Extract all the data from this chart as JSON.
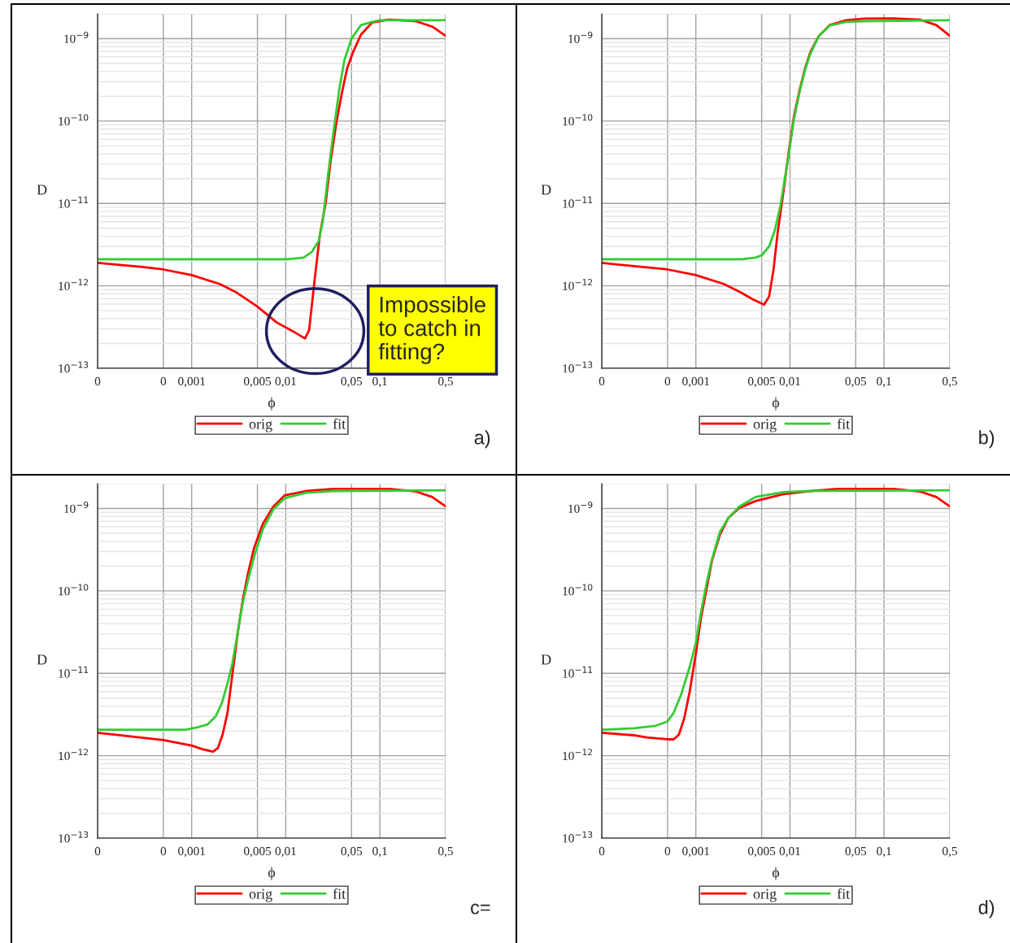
{
  "chart_data": [
    {
      "type": "line",
      "xlabel": "ϕ",
      "ylabel": "D",
      "log": "xy",
      "grid": true,
      "legend": "bottom",
      "xlim": [
        0.0001,
        0.5
      ],
      "xticks": [
        {
          "value": 0.0001,
          "label": "0"
        },
        {
          "value": 0.0005,
          "label": "0"
        },
        {
          "value": 0.001,
          "label": "0,001"
        },
        {
          "value": 0.005,
          "label": "0,005"
        },
        {
          "value": 0.01,
          "label": "0,01"
        },
        {
          "value": 0.05,
          "label": "0,05"
        },
        {
          "value": 0.1,
          "label": "0,1"
        },
        {
          "value": 0.5,
          "label": "0,5"
        }
      ],
      "ylim": [
        1e-13,
        2e-09
      ],
      "yticks": [
        {
          "value": 1e-13,
          "label": "10$^{−13}$"
        },
        {
          "value": 1e-12,
          "label": "10$^{−12}$"
        },
        {
          "value": 1e-11,
          "label": "10$^{−11}$"
        },
        {
          "value": 1e-10,
          "label": "10$^{−10}$"
        },
        {
          "value": 1e-09,
          "label": "10$^{−9}$"
        }
      ],
      "annotations": [
        "Impossible\nto catch in\nfitting?",
        "a)"
      ],
      "series": [
        {
          "name": "orig",
          "color": "#ff0000",
          "x": [
            0.0001,
            0.0003,
            0.0005,
            0.001,
            0.002,
            0.003,
            0.005,
            0.008,
            0.012,
            0.016,
            0.0177,
            0.0203,
            0.023,
            0.0265,
            0.03,
            0.0345,
            0.0395,
            0.045,
            0.052,
            0.063,
            0.083,
            0.124,
            0.24,
            0.36,
            0.5
          ],
          "values": [
            1.9e-12,
            1.7e-12,
            1.58e-12,
            1.35e-12,
            1.05e-12,
            8.3e-13,
            5.6e-13,
            3.6e-13,
            2.8e-13,
            2.3e-13,
            2.9e-13,
            1.2e-12,
            4.1e-12,
            1e-11,
            3.3e-11,
            9.6e-11,
            2.2e-10,
            4.4e-10,
            6.9e-10,
            1.12e-09,
            1.57e-09,
            1.7e-09,
            1.63e-09,
            1.4e-09,
            1.08e-09
          ]
        },
        {
          "name": "fit",
          "color": "#33cc33",
          "x": [
            0.0001,
            0.001,
            0.0105,
            0.0155,
            0.019,
            0.0224,
            0.0247,
            0.028,
            0.032,
            0.037,
            0.042,
            0.05,
            0.063,
            0.083,
            0.1,
            0.5
          ],
          "values": [
            2.1e-12,
            2.1e-12,
            2.1e-12,
            2.2e-12,
            2.6e-12,
            3.5e-12,
            6e-12,
            2.1e-11,
            7.1e-11,
            2.4e-10,
            5.5e-10,
            1e-09,
            1.46e-09,
            1.6e-09,
            1.67e-09,
            1.67e-09
          ]
        }
      ]
    },
    {
      "type": "line",
      "xlabel": "ϕ",
      "ylabel": "D",
      "log": "xy",
      "grid": true,
      "legend": "bottom",
      "xlim": [
        0.0001,
        0.5
      ],
      "xticks": [
        {
          "value": 0.0001,
          "label": "0"
        },
        {
          "value": 0.0005,
          "label": "0"
        },
        {
          "value": 0.001,
          "label": "0,001"
        },
        {
          "value": 0.005,
          "label": "0,005"
        },
        {
          "value": 0.01,
          "label": "0,01"
        },
        {
          "value": 0.05,
          "label": "0,05"
        },
        {
          "value": 0.1,
          "label": "0,1"
        },
        {
          "value": 0.5,
          "label": "0,5"
        }
      ],
      "ylim": [
        1e-13,
        2e-09
      ],
      "yticks": [
        {
          "value": 1e-13,
          "label": "10$^{−13}$"
        },
        {
          "value": 1e-12,
          "label": "10$^{−12}$"
        },
        {
          "value": 1e-11,
          "label": "10$^{−11}$"
        },
        {
          "value": 1e-10,
          "label": "10$^{−10}$"
        },
        {
          "value": 1e-09,
          "label": "10$^{−9}$"
        }
      ],
      "annotations": [
        "b)"
      ],
      "series": [
        {
          "name": "orig",
          "color": "#ff0000",
          "x": [
            0.0001,
            0.0005,
            0.001,
            0.002,
            0.003,
            0.004,
            0.0053,
            0.006,
            0.0067,
            0.0074,
            0.0085,
            0.0097,
            0.011,
            0.0127,
            0.0145,
            0.0165,
            0.0203,
            0.0265,
            0.0395,
            0.063,
            0.124,
            0.24,
            0.36,
            0.5
          ],
          "values": [
            1.9e-12,
            1.58e-12,
            1.35e-12,
            1.05e-12,
            8.3e-13,
            6.9e-13,
            5.9e-13,
            7.4e-13,
            1.6e-12,
            4.4e-12,
            1.35e-11,
            4.2e-11,
            1.12e-10,
            2.4e-10,
            4.4e-10,
            6.9e-10,
            1.08e-09,
            1.46e-09,
            1.67e-09,
            1.75e-09,
            1.76e-09,
            1.7e-09,
            1.46e-09,
            1.08e-09
          ]
        },
        {
          "name": "fit",
          "color": "#33cc33",
          "x": [
            0.0001,
            0.001,
            0.0031,
            0.0043,
            0.005,
            0.006,
            0.0069,
            0.0079,
            0.0097,
            0.011,
            0.0127,
            0.0145,
            0.0165,
            0.0203,
            0.0265,
            0.0395,
            0.063,
            0.5
          ],
          "values": [
            2.1e-12,
            2.1e-12,
            2.1e-12,
            2.2e-12,
            2.35e-12,
            3e-12,
            4.7e-12,
            9.3e-12,
            3.9e-11,
            1.04e-10,
            2.3e-10,
            4.2e-10,
            6.6e-10,
            1.08e-09,
            1.44e-09,
            1.6e-09,
            1.63e-09,
            1.67e-09
          ]
        }
      ]
    },
    {
      "type": "line",
      "xlabel": "ϕ",
      "ylabel": "D",
      "log": "xy",
      "grid": true,
      "legend": "bottom",
      "xlim": [
        0.0001,
        0.5
      ],
      "xticks": [
        {
          "value": 0.0001,
          "label": "0"
        },
        {
          "value": 0.0005,
          "label": "0"
        },
        {
          "value": 0.001,
          "label": "0,001"
        },
        {
          "value": 0.005,
          "label": "0,005"
        },
        {
          "value": 0.01,
          "label": "0,01"
        },
        {
          "value": 0.05,
          "label": "0,05"
        },
        {
          "value": 0.1,
          "label": "0,1"
        },
        {
          "value": 0.5,
          "label": "0,5"
        }
      ],
      "ylim": [
        1e-13,
        2e-09
      ],
      "yticks": [
        {
          "value": 1e-13,
          "label": "10$^{−13}$"
        },
        {
          "value": 1e-12,
          "label": "10$^{−12}$"
        },
        {
          "value": 1e-11,
          "label": "10$^{−11}$"
        },
        {
          "value": 1e-10,
          "label": "10$^{−10}$"
        },
        {
          "value": 1e-09,
          "label": "10$^{−9}$"
        }
      ],
      "annotations": [
        "c="
      ],
      "series": [
        {
          "name": "orig",
          "color": "#ff0000",
          "x": [
            0.0001,
            0.0005,
            0.001,
            0.0013,
            0.00169,
            0.0019,
            0.00213,
            0.0024,
            0.0027,
            0.0031,
            0.0035,
            0.004,
            0.0046,
            0.0057,
            0.0074,
            0.0097,
            0.0165,
            0.032,
            0.124,
            0.24,
            0.36,
            0.5
          ],
          "values": [
            1.9e-12,
            1.55e-12,
            1.33e-12,
            1.2e-12,
            1.12e-12,
            1.24e-12,
            1.8e-12,
            3.3e-12,
            9.5e-12,
            3.2e-11,
            7.9e-11,
            1.7e-10,
            3.3e-10,
            6.5e-10,
            1.06e-09,
            1.44e-09,
            1.63e-09,
            1.73e-09,
            1.73e-09,
            1.61e-09,
            1.38e-09,
            1.06e-09
          ]
        },
        {
          "name": "fit",
          "color": "#33cc33",
          "x": [
            0.0001,
            0.0005,
            0.00086,
            0.00113,
            0.00148,
            0.0018,
            0.0021,
            0.0024,
            0.0027,
            0.0031,
            0.0035,
            0.004,
            0.0046,
            0.0057,
            0.0074,
            0.0097,
            0.0165,
            0.032,
            0.5
          ],
          "values": [
            2.07e-12,
            2.07e-12,
            2.07e-12,
            2.2e-12,
            2.4e-12,
            3e-12,
            4.4e-12,
            7.5e-12,
            1.3e-11,
            3.2e-11,
            7.3e-11,
            1.4e-10,
            2.6e-10,
            5.6e-10,
            9.8e-10,
            1.33e-09,
            1.55e-09,
            1.63e-09,
            1.66e-09
          ]
        }
      ]
    },
    {
      "type": "line",
      "xlabel": "ϕ",
      "ylabel": "D",
      "log": "xy",
      "grid": true,
      "legend": "bottom",
      "xlim": [
        0.0001,
        0.5
      ],
      "xticks": [
        {
          "value": 0.0001,
          "label": "0"
        },
        {
          "value": 0.0005,
          "label": "0"
        },
        {
          "value": 0.001,
          "label": "0,001"
        },
        {
          "value": 0.005,
          "label": "0,005"
        },
        {
          "value": 0.01,
          "label": "0,01"
        },
        {
          "value": 0.05,
          "label": "0,05"
        },
        {
          "value": 0.1,
          "label": "0,1"
        },
        {
          "value": 0.5,
          "label": "0,5"
        }
      ],
      "ylim": [
        1e-13,
        2e-09
      ],
      "yticks": [
        {
          "value": 1e-13,
          "label": "10$^{−13}$"
        },
        {
          "value": 1e-12,
          "label": "10$^{−12}$"
        },
        {
          "value": 1e-11,
          "label": "10$^{−11}$"
        },
        {
          "value": 1e-10,
          "label": "10$^{−10}$"
        },
        {
          "value": 1e-09,
          "label": "10$^{−9}$"
        }
      ],
      "annotations": [
        "d)"
      ],
      "series": [
        {
          "name": "orig",
          "color": "#ff0000",
          "x": [
            0.0001,
            0.00022,
            0.0003,
            0.0005,
            0.00058,
            0.00066,
            0.00075,
            0.00086,
            0.001,
            0.00113,
            0.0013,
            0.00148,
            0.0018,
            0.0022,
            0.0029,
            0.0043,
            0.0085,
            0.0165,
            0.032,
            0.124,
            0.24,
            0.36,
            0.5
          ],
          "values": [
            1.9e-12,
            1.77e-12,
            1.67e-12,
            1.58e-12,
            1.58e-12,
            1.8e-12,
            2.8e-12,
            6e-12,
            1.74e-11,
            4.6e-11,
            1.06e-10,
            2.3e-10,
            4.8e-10,
            7.6e-10,
            1.02e-09,
            1.23e-09,
            1.49e-09,
            1.63e-09,
            1.73e-09,
            1.73e-09,
            1.61e-09,
            1.38e-09,
            1.06e-09
          ]
        },
        {
          "name": "fit",
          "color": "#33cc33",
          "x": [
            0.0001,
            0.00022,
            0.00037,
            0.0005,
            0.00058,
            0.0007,
            0.00086,
            0.001,
            0.00113,
            0.0013,
            0.00148,
            0.0018,
            0.0022,
            0.0029,
            0.0043,
            0.0085,
            0.0165,
            0.5
          ],
          "values": [
            2.07e-12,
            2.15e-12,
            2.3e-12,
            2.6e-12,
            3.3e-12,
            5.6e-12,
            1.2e-11,
            2.35e-11,
            5.4e-11,
            1.24e-10,
            2.4e-10,
            5.2e-10,
            7.6e-10,
            1.06e-09,
            1.38e-09,
            1.58e-09,
            1.63e-09,
            1.66e-09
          ]
        }
      ]
    }
  ]
}
